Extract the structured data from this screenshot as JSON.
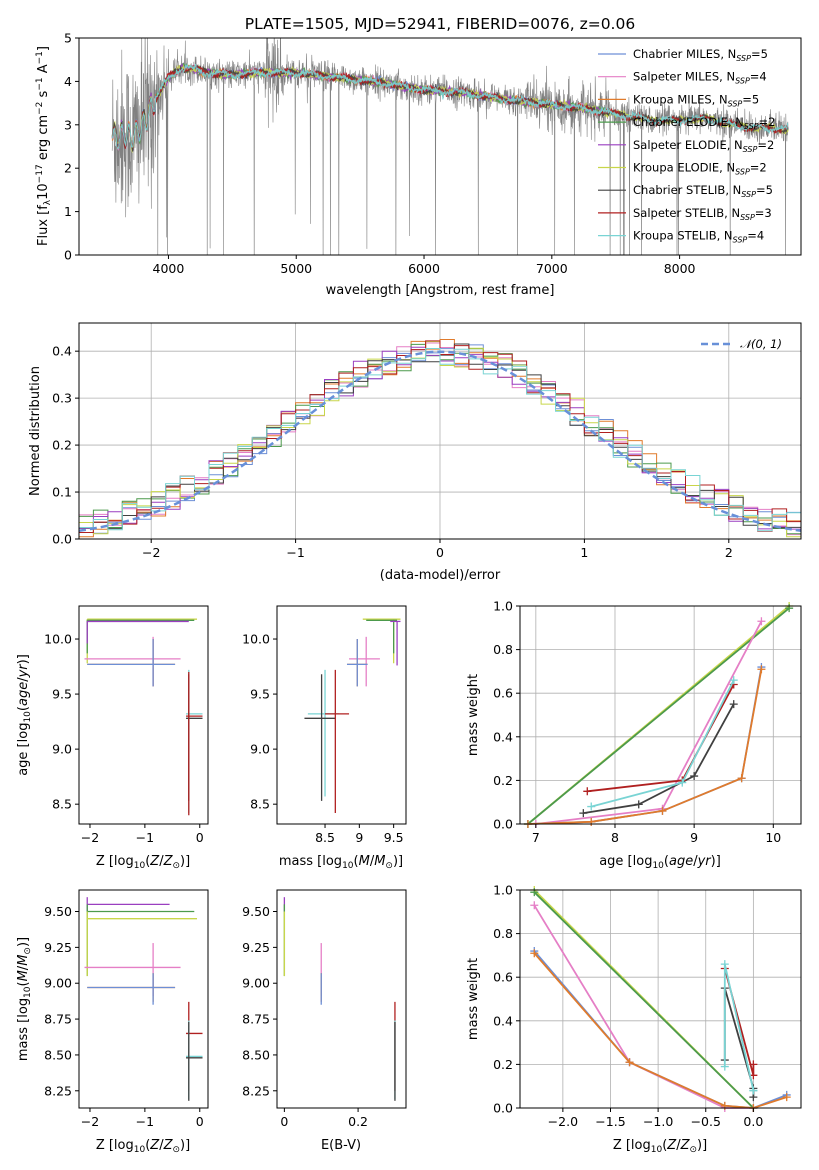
{
  "figure": {
    "title": "PLATE=1505, MJD=52941, FIBERID=0076, z=0.06"
  },
  "colors": {
    "spectrum": "#808080",
    "frame": "#000000",
    "grid": "#b0b0b0",
    "normal_curve": "#6890d8"
  },
  "legend_spectrum": [
    {
      "label": "Chabrier MILES, N",
      "sub": "SSP",
      "tail": "=5",
      "color": "#6d8fd6"
    },
    {
      "label": "Salpeter MILES, N",
      "sub": "SSP",
      "tail": "=4",
      "color": "#e57fc6"
    },
    {
      "label": "Kroupa MILES, N",
      "sub": "SSP",
      "tail": "=5",
      "color": "#e07b2c"
    },
    {
      "label": "Chabrier ELODIE, N",
      "sub": "SSP",
      "tail": "=2",
      "color": "#4c9a4c"
    },
    {
      "label": "Salpeter ELODIE, N",
      "sub": "SSP",
      "tail": "=2",
      "color": "#9a3fc0"
    },
    {
      "label": "Kroupa ELODIE, N",
      "sub": "SSP",
      "tail": "=2",
      "color": "#c8d64a"
    },
    {
      "label": "Chabrier STELIB, N",
      "sub": "SSP",
      "tail": "=5",
      "color": "#404040"
    },
    {
      "label": "Salpeter STELIB, N",
      "sub": "SSP",
      "tail": "=3",
      "color": "#b02020"
    },
    {
      "label": "Kroupa STELIB, N",
      "sub": "SSP",
      "tail": "=4",
      "color": "#79d4d4"
    }
  ],
  "legend_hist": {
    "label": "𝒩(0, 1)"
  },
  "chart_data": [
    {
      "id": "spectrum",
      "type": "line",
      "xlabel": "wavelength [Angstrom, rest frame]",
      "ylabel": "Flux [fλ10⁻¹⁷ erg cm⁻² s⁻¹ A⁻¹]",
      "xlim": [
        3300,
        8950
      ],
      "ylim": [
        0,
        5
      ],
      "xticks": [
        4000,
        5000,
        6000,
        7000,
        8000
      ],
      "yticks": [
        0,
        1,
        2,
        3,
        4,
        5
      ],
      "grid": false,
      "legend": "right",
      "data_range_x": [
        3560,
        8850
      ],
      "continuum": {
        "x": [
          3560,
          3650,
          3720,
          3800,
          3900,
          4000,
          4100,
          4200,
          4300,
          4500,
          4700,
          5000,
          5300,
          5600,
          6000,
          6300,
          6600,
          6900,
          7200,
          7400,
          7600,
          7800,
          8000,
          8200,
          8500,
          8850
        ],
        "y": [
          2.7,
          2.8,
          2.7,
          3.0,
          3.6,
          4.1,
          4.3,
          4.3,
          4.2,
          4.15,
          4.2,
          4.2,
          4.1,
          4.0,
          3.8,
          3.75,
          3.6,
          3.5,
          3.4,
          3.3,
          3.2,
          3.1,
          3.1,
          3.15,
          2.95,
          2.9
        ]
      }
    },
    {
      "id": "residuals",
      "type": "line",
      "xlabel": "(data-model)/error",
      "ylabel": "Normed distribution",
      "xlim": [
        -2.5,
        2.5
      ],
      "ylim": [
        0,
        0.46
      ],
      "xticks": [
        -2,
        -1,
        0,
        1,
        2
      ],
      "yticks": [
        0.0,
        0.1,
        0.2,
        0.3,
        0.4
      ],
      "grid": true,
      "legend": "top-right",
      "bin_width": 0.1,
      "bin_start": -2.5
    },
    {
      "id": "age-vs-Z",
      "type": "scatter",
      "xlabel": "Z [log10(Z/Z⊙)]",
      "ylabel": "age [log10(age/yr)]",
      "xlim": [
        -2.2,
        0.15
      ],
      "ylim": [
        8.32,
        10.3
      ],
      "xticks": [
        -2,
        -1,
        0
      ],
      "yticks": [
        8.5,
        9.0,
        9.5,
        10.0
      ],
      "grid": false,
      "points": [
        {
          "x": -2.05,
          "y": 10.18,
          "xerr": [
            0.0,
            2.0
          ],
          "yerr": [
            0.4,
            0.0
          ],
          "color": "#c8d64a"
        },
        {
          "x": -2.05,
          "y": 10.17,
          "xerr": [
            0.0,
            1.95
          ],
          "yerr": [
            0.3,
            0.0
          ],
          "color": "#4c9a4c"
        },
        {
          "x": -2.05,
          "y": 10.16,
          "xerr": [
            0.0,
            1.85
          ],
          "yerr": [
            0.2,
            0.0
          ],
          "color": "#9a3fc0"
        },
        {
          "x": -0.85,
          "y": 9.82,
          "xerr": [
            1.25,
            0.5
          ],
          "yerr": [
            0.25,
            0.2
          ],
          "color": "#e57fc6"
        },
        {
          "x": -0.85,
          "y": 9.77,
          "xerr": [
            1.2,
            0.4
          ],
          "yerr": [
            0.2,
            0.23
          ],
          "color": "#e07b2c"
        },
        {
          "x": -0.85,
          "y": 9.77,
          "xerr": [
            1.2,
            0.4
          ],
          "yerr": [
            0.2,
            0.23
          ],
          "color": "#6d8fd6"
        },
        {
          "x": -0.2,
          "y": 9.32,
          "xerr": [
            0.05,
            0.25
          ],
          "yerr": [
            0.9,
            0.4
          ],
          "color": "#79d4d4"
        },
        {
          "x": -0.2,
          "y": 9.28,
          "xerr": [
            0.05,
            0.25
          ],
          "yerr": [
            0.75,
            0.4
          ],
          "color": "#404040"
        },
        {
          "x": -0.2,
          "y": 9.3,
          "xerr": [
            0.05,
            0.25
          ],
          "yerr": [
            0.9,
            0.4
          ],
          "color": "#b02020"
        }
      ]
    },
    {
      "id": "age-vs-mass",
      "type": "scatter",
      "xlabel": "mass [log10(M/M⊙)]",
      "ylabel": "",
      "xlim": [
        7.8,
        9.68
      ],
      "ylim": [
        8.32,
        10.3
      ],
      "xticks": [
        8.5,
        9.0,
        9.5
      ],
      "yticks": [
        8.5,
        9.0,
        9.5,
        10.0
      ],
      "grid": false,
      "points": [
        {
          "x": 9.5,
          "y": 10.18,
          "xerr": [
            0.45,
            0.1
          ],
          "yerr": [
            0.4,
            0.0
          ],
          "color": "#c8d64a"
        },
        {
          "x": 9.5,
          "y": 10.17,
          "xerr": [
            0.4,
            0.05
          ],
          "yerr": [
            0.3,
            0.0
          ],
          "color": "#4c9a4c"
        },
        {
          "x": 9.55,
          "y": 10.16,
          "xerr": [
            0.1,
            0.05
          ],
          "yerr": [
            0.4,
            0.0
          ],
          "color": "#9a3fc0"
        },
        {
          "x": 9.1,
          "y": 9.82,
          "xerr": [
            0.25,
            0.2
          ],
          "yerr": [
            0.25,
            0.2
          ],
          "color": "#e57fc6"
        },
        {
          "x": 8.97,
          "y": 9.77,
          "xerr": [
            0.15,
            0.15
          ],
          "yerr": [
            0.2,
            0.23
          ],
          "color": "#e07b2c"
        },
        {
          "x": 8.97,
          "y": 9.77,
          "xerr": [
            0.15,
            0.15
          ],
          "yerr": [
            0.2,
            0.23
          ],
          "color": "#6d8fd6"
        },
        {
          "x": 8.5,
          "y": 9.32,
          "xerr": [
            0.25,
            0.2
          ],
          "yerr": [
            0.75,
            0.4
          ],
          "color": "#79d4d4"
        },
        {
          "x": 8.45,
          "y": 9.28,
          "xerr": [
            0.25,
            0.2
          ],
          "yerr": [
            0.75,
            0.4
          ],
          "color": "#404040"
        },
        {
          "x": 8.65,
          "y": 9.32,
          "xerr": [
            0.15,
            0.2
          ],
          "yerr": [
            0.9,
            0.4
          ],
          "color": "#b02020"
        }
      ]
    },
    {
      "id": "weight-vs-age",
      "type": "line",
      "xlabel": "age [log10(age/yr)]",
      "ylabel": "mass weight",
      "xlim": [
        6.8,
        10.35
      ],
      "ylim": [
        0,
        1.0
      ],
      "xticks": [
        7,
        8,
        9,
        10
      ],
      "yticks": [
        0.0,
        0.2,
        0.4,
        0.6,
        0.8,
        1.0
      ],
      "grid": true,
      "series": [
        {
          "color": "#c8d64a",
          "x": [
            6.9,
            10.2
          ],
          "y": [
            0.0,
            1.0
          ]
        },
        {
          "color": "#4c9a4c",
          "x": [
            6.9,
            10.2
          ],
          "y": [
            0.0,
            0.99
          ]
        },
        {
          "color": "#e57fc6",
          "x": [
            7.0,
            8.6,
            9.85
          ],
          "y": [
            0.0,
            0.07,
            0.93
          ]
        },
        {
          "color": "#6d8fd6",
          "x": [
            6.9,
            7.7,
            8.6,
            9.6,
            9.85
          ],
          "y": [
            0.0,
            0.01,
            0.06,
            0.21,
            0.72
          ]
        },
        {
          "color": "#e07b2c",
          "x": [
            6.9,
            7.7,
            8.6,
            9.6,
            9.85
          ],
          "y": [
            0.0,
            0.01,
            0.06,
            0.21,
            0.71
          ]
        },
        {
          "color": "#404040",
          "x": [
            7.6,
            8.3,
            9.0,
            9.5
          ],
          "y": [
            0.05,
            0.09,
            0.22,
            0.55
          ]
        },
        {
          "color": "#b02020",
          "x": [
            7.65,
            8.85,
            9.5
          ],
          "y": [
            0.15,
            0.2,
            0.64
          ]
        },
        {
          "color": "#79d4d4",
          "x": [
            7.7,
            8.85,
            9.5
          ],
          "y": [
            0.08,
            0.19,
            0.66
          ]
        }
      ]
    },
    {
      "id": "mass-vs-Z",
      "type": "scatter",
      "xlabel": "Z [log10(Z/Z⊙)]",
      "ylabel": "mass [log10(M/M⊙)]",
      "xlim": [
        -2.2,
        0.15
      ],
      "ylim": [
        8.13,
        9.65
      ],
      "xticks": [
        -2,
        -1,
        0
      ],
      "yticks": [
        8.25,
        8.5,
        8.75,
        9.0,
        9.25,
        9.5,
        9.75
      ],
      "grid": false,
      "points": [
        {
          "x": -2.05,
          "y": 9.55,
          "xerr": [
            0.0,
            1.5
          ],
          "yerr": [
            0.05,
            0.05
          ],
          "color": "#9a3fc0"
        },
        {
          "x": -2.05,
          "y": 9.5,
          "xerr": [
            0.0,
            1.95
          ],
          "yerr": [
            0.45,
            0.05
          ],
          "color": "#4c9a4c"
        },
        {
          "x": -2.05,
          "y": 9.45,
          "xerr": [
            0.0,
            2.0
          ],
          "yerr": [
            0.4,
            0.05
          ],
          "color": "#c8d64a"
        },
        {
          "x": -0.85,
          "y": 9.11,
          "xerr": [
            1.25,
            0.5
          ],
          "yerr": [
            0.2,
            0.17
          ],
          "color": "#e57fc6"
        },
        {
          "x": -0.85,
          "y": 8.97,
          "xerr": [
            1.2,
            0.4
          ],
          "yerr": [
            0.1,
            0.1
          ],
          "color": "#e07b2c"
        },
        {
          "x": -0.85,
          "y": 8.97,
          "xerr": [
            1.2,
            0.4
          ],
          "yerr": [
            0.12,
            0.1
          ],
          "color": "#6d8fd6"
        },
        {
          "x": -0.2,
          "y": 8.65,
          "xerr": [
            0.05,
            0.25
          ],
          "yerr": [
            0.4,
            0.22
          ],
          "color": "#b02020"
        },
        {
          "x": -0.2,
          "y": 8.49,
          "xerr": [
            0.05,
            0.25
          ],
          "yerr": [
            0.3,
            0.25
          ],
          "color": "#79d4d4"
        },
        {
          "x": -0.2,
          "y": 8.48,
          "xerr": [
            0.05,
            0.25
          ],
          "yerr": [
            0.3,
            0.25
          ],
          "color": "#404040"
        }
      ]
    },
    {
      "id": "mass-vs-EBV",
      "type": "scatter",
      "xlabel": "E(B-V)",
      "ylabel": "",
      "xlim": [
        -0.02,
        0.33
      ],
      "ylim": [
        8.13,
        9.65
      ],
      "xticks": [
        0.0,
        0.2
      ],
      "yticks": [
        8.25,
        8.5,
        8.75,
        9.0,
        9.25,
        9.5,
        9.75
      ],
      "grid": false,
      "points": [
        {
          "x": 0.0,
          "y": 9.55,
          "yerr": [
            0.05,
            0.05
          ],
          "color": "#9a3fc0"
        },
        {
          "x": 0.0,
          "y": 9.5,
          "yerr": [
            0.45,
            0.05
          ],
          "color": "#4c9a4c"
        },
        {
          "x": 0.0,
          "y": 9.45,
          "yerr": [
            0.4,
            0.05
          ],
          "color": "#c8d64a"
        },
        {
          "x": 0.1,
          "y": 9.11,
          "yerr": [
            0.2,
            0.17
          ],
          "color": "#e57fc6"
        },
        {
          "x": 0.1,
          "y": 8.97,
          "yerr": [
            0.1,
            0.1
          ],
          "color": "#e07b2c"
        },
        {
          "x": 0.1,
          "y": 8.97,
          "yerr": [
            0.12,
            0.1
          ],
          "color": "#6d8fd6"
        },
        {
          "x": 0.3,
          "y": 8.65,
          "yerr": [
            0.4,
            0.22
          ],
          "color": "#b02020"
        },
        {
          "x": 0.3,
          "y": 8.49,
          "yerr": [
            0.3,
            0.25
          ],
          "color": "#79d4d4"
        },
        {
          "x": 0.3,
          "y": 8.48,
          "yerr": [
            0.3,
            0.25
          ],
          "color": "#404040"
        }
      ]
    },
    {
      "id": "weight-vs-Z",
      "type": "line",
      "xlabel": "Z [log10(Z/Z⊙)]",
      "ylabel": "mass weight",
      "xlim": [
        -2.45,
        0.5
      ],
      "ylim": [
        0,
        1.0
      ],
      "xticks": [
        -2.0,
        -1.5,
        -1.0,
        -0.5,
        0.0
      ],
      "yticks": [
        0.0,
        0.2,
        0.4,
        0.6,
        0.8,
        1.0
      ],
      "grid": true,
      "series": [
        {
          "color": "#c8d64a",
          "x": [
            -2.3,
            0.0
          ],
          "y": [
            1.0,
            0.0
          ]
        },
        {
          "color": "#4c9a4c",
          "x": [
            -2.3,
            0.0
          ],
          "y": [
            0.99,
            0.0
          ]
        },
        {
          "color": "#e57fc6",
          "x": [
            -2.3,
            -1.3,
            -0.3,
            0.0
          ],
          "y": [
            0.93,
            0.21,
            0.0,
            0.0
          ]
        },
        {
          "color": "#6d8fd6",
          "x": [
            -2.3,
            -1.3,
            -0.3,
            0.0,
            0.35
          ],
          "y": [
            0.72,
            0.21,
            0.01,
            0.0,
            0.06
          ]
        },
        {
          "color": "#e07b2c",
          "x": [
            -2.3,
            -1.3,
            -0.3,
            0.0,
            0.35
          ],
          "y": [
            0.71,
            0.21,
            0.01,
            0.0,
            0.05
          ]
        },
        {
          "color": "#404040",
          "x": [
            -0.3,
            -0.3,
            0.0,
            0.0
          ],
          "y": [
            0.22,
            0.55,
            0.09,
            0.05
          ]
        },
        {
          "color": "#b02020",
          "x": [
            -0.3,
            0.0,
            0.0
          ],
          "y": [
            0.64,
            0.15,
            0.2
          ]
        },
        {
          "color": "#79d4d4",
          "x": [
            -0.3,
            -0.3,
            0.0,
            0.0
          ],
          "y": [
            0.19,
            0.66,
            0.08,
            0.08
          ]
        }
      ]
    }
  ]
}
